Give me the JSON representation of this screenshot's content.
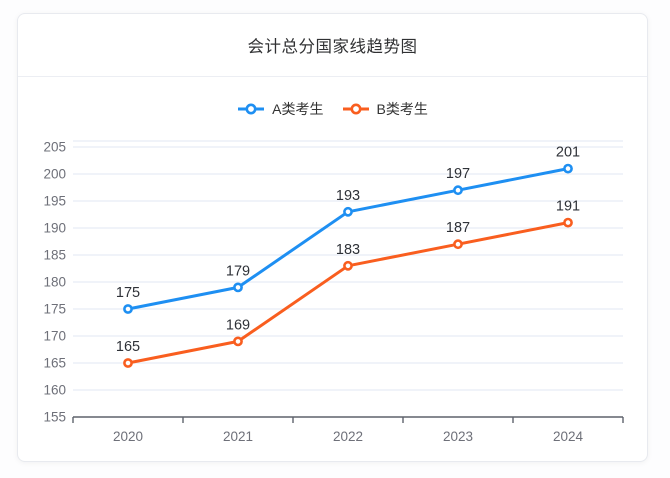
{
  "card": {
    "title": "会计总分国家线趋势图"
  },
  "colors": {
    "title_text": "#303133",
    "legend_text": "#333333",
    "card_border": "#E8EAEF",
    "divider": "#ECEEF3",
    "grid_line": "#E2E7F3",
    "axis_label": "#6E7079",
    "axis_line": "#5E626B",
    "data_label": "#2F3238",
    "series_a": "#1E8FF2",
    "series_b": "#F95E1F"
  },
  "chart_data": {
    "type": "line",
    "title": "会计总分国家线趋势图",
    "categories": [
      "2020",
      "2021",
      "2022",
      "2023",
      "2024"
    ],
    "series": [
      {
        "name": "A类考生",
        "color": "#1E8FF2",
        "values": [
          175,
          179,
          193,
          197,
          201
        ]
      },
      {
        "name": "B类考生",
        "color": "#F95E1F",
        "values": [
          165,
          169,
          183,
          187,
          191
        ]
      }
    ],
    "ylim": [
      155,
      205
    ],
    "ytick_interval": 5,
    "xlabel": "",
    "ylabel": "",
    "grid": true,
    "legend_position": "top-center",
    "data_labels": "above-points",
    "marker": "hollow-circle",
    "x_axis_line": true,
    "y_axis_line": false
  }
}
